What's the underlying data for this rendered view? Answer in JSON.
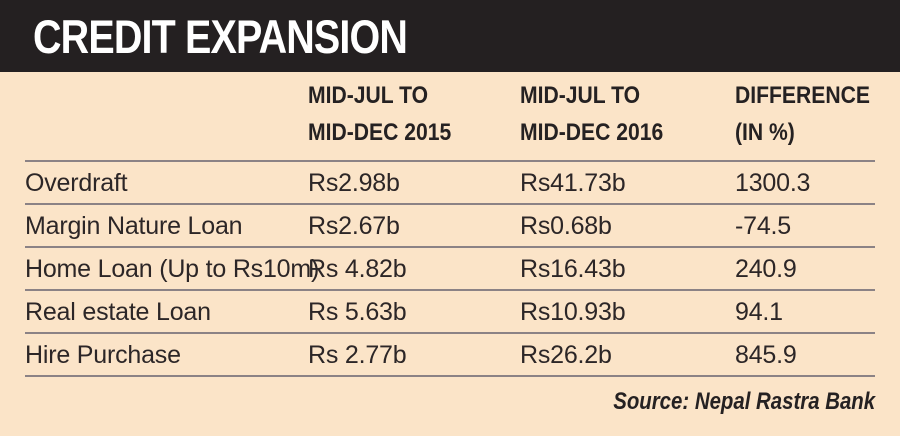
{
  "chart_data": {
    "type": "table",
    "title": "CREDIT EXPANSION",
    "columns": [
      {
        "line1": "",
        "line2": ""
      },
      {
        "line1": "MID-JUL TO",
        "line2": "MID-DEC 2015"
      },
      {
        "line1": "MID-JUL TO",
        "line2": "MID-DEC 2016"
      },
      {
        "line1": "DIFFERENCE",
        "line2": "(IN %)"
      }
    ],
    "rows": [
      {
        "label": "Overdraft",
        "y2015": "Rs2.98b",
        "y2016": "Rs41.73b",
        "diff": "1300.3"
      },
      {
        "label": "Margin Nature Loan",
        "y2015": "Rs2.67b",
        "y2016": "Rs0.68b",
        "diff": "-74.5"
      },
      {
        "label": "Home Loan (Up to Rs10m)",
        "y2015": "Rs 4.82b",
        "y2016": "Rs16.43b",
        "diff": "240.9"
      },
      {
        "label": "Real estate Loan",
        "y2015": "Rs 5.63b",
        "y2016": "Rs10.93b",
        "diff": "94.1"
      },
      {
        "label": "Hire Purchase",
        "y2015": "Rs 2.77b",
        "y2016": "Rs26.2b",
        "diff": "845.9"
      }
    ],
    "source": "Source: Nepal Rastra Bank",
    "layout": {
      "grid": "horizontal-rules-only",
      "legend": "none"
    }
  },
  "colors": {
    "background": "#fbe4c8",
    "title_band": "#242021",
    "title_text": "#ffffff",
    "text": "#2c2627",
    "divider": "#8b8285"
  }
}
